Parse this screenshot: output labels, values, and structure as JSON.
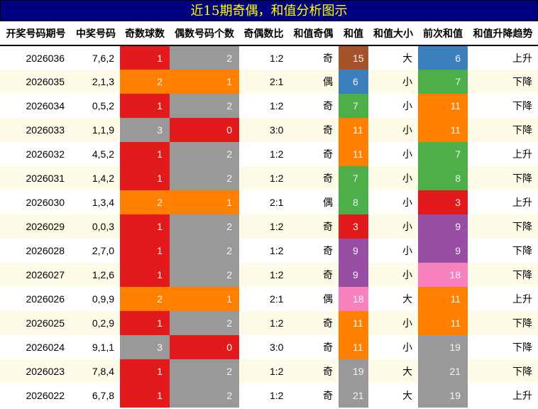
{
  "title": "近15期奇偶，和值分析图示",
  "columns": [
    "开奖号码期号",
    "中奖号码",
    "奇数球数",
    "偶数号码个数",
    "奇偶数比",
    "和值奇偶",
    "和值",
    "和值大小",
    "前次和值",
    "和值升降趋势"
  ],
  "colors": {
    "red": "#e31a1c",
    "gray": "#999999",
    "orange": "#ff7f00",
    "brown": "#a6522a",
    "blue": "#3b7fbd",
    "green": "#4daf4a",
    "purple": "#984ea3",
    "pink": "#f781bf",
    "header_bg": "#000080",
    "title_text": "#ffff00",
    "alt_row": "#fefbe8"
  },
  "rows": [
    {
      "issue": "2026036",
      "numbers": "7,6,2",
      "odd": "1",
      "even": "2",
      "ratio": "1:2",
      "sum_parity": "奇",
      "sum": "15",
      "size": "大",
      "prev_sum": "6",
      "trend": "上升",
      "odd_color": "#e31a1c",
      "even_color": "#999999",
      "sum_color": "#a6522a",
      "prev_color": "#3b7fbd"
    },
    {
      "issue": "2026035",
      "numbers": "2,1,3",
      "odd": "2",
      "even": "1",
      "ratio": "2:1",
      "sum_parity": "偶",
      "sum": "6",
      "size": "小",
      "prev_sum": "7",
      "trend": "下降",
      "odd_color": "#ff7f00",
      "even_color": "#ff7f00",
      "sum_color": "#3b7fbd",
      "prev_color": "#4daf4a"
    },
    {
      "issue": "2026034",
      "numbers": "0,5,2",
      "odd": "1",
      "even": "2",
      "ratio": "1:2",
      "sum_parity": "奇",
      "sum": "7",
      "size": "小",
      "prev_sum": "11",
      "trend": "下降",
      "odd_color": "#e31a1c",
      "even_color": "#999999",
      "sum_color": "#4daf4a",
      "prev_color": "#ff7f00"
    },
    {
      "issue": "2026033",
      "numbers": "1,1,9",
      "odd": "3",
      "even": "0",
      "ratio": "3:0",
      "sum_parity": "奇",
      "sum": "11",
      "size": "小",
      "prev_sum": "11",
      "trend": "下降",
      "odd_color": "#999999",
      "even_color": "#e31a1c",
      "sum_color": "#ff7f00",
      "prev_color": "#ff7f00"
    },
    {
      "issue": "2026032",
      "numbers": "4,5,2",
      "odd": "1",
      "even": "2",
      "ratio": "1:2",
      "sum_parity": "奇",
      "sum": "11",
      "size": "小",
      "prev_sum": "7",
      "trend": "上升",
      "odd_color": "#e31a1c",
      "even_color": "#999999",
      "sum_color": "#ff7f00",
      "prev_color": "#4daf4a"
    },
    {
      "issue": "2026031",
      "numbers": "1,4,2",
      "odd": "1",
      "even": "2",
      "ratio": "1:2",
      "sum_parity": "奇",
      "sum": "7",
      "size": "小",
      "prev_sum": "8",
      "trend": "下降",
      "odd_color": "#e31a1c",
      "even_color": "#999999",
      "sum_color": "#4daf4a",
      "prev_color": "#4daf4a"
    },
    {
      "issue": "2026030",
      "numbers": "1,3,4",
      "odd": "2",
      "even": "1",
      "ratio": "2:1",
      "sum_parity": "偶",
      "sum": "8",
      "size": "小",
      "prev_sum": "3",
      "trend": "上升",
      "odd_color": "#ff7f00",
      "even_color": "#ff7f00",
      "sum_color": "#4daf4a",
      "prev_color": "#e31a1c"
    },
    {
      "issue": "2026029",
      "numbers": "0,0,3",
      "odd": "1",
      "even": "2",
      "ratio": "1:2",
      "sum_parity": "奇",
      "sum": "3",
      "size": "小",
      "prev_sum": "9",
      "trend": "下降",
      "odd_color": "#e31a1c",
      "even_color": "#999999",
      "sum_color": "#e31a1c",
      "prev_color": "#984ea3"
    },
    {
      "issue": "2026028",
      "numbers": "2,7,0",
      "odd": "1",
      "even": "2",
      "ratio": "1:2",
      "sum_parity": "奇",
      "sum": "9",
      "size": "小",
      "prev_sum": "9",
      "trend": "下降",
      "odd_color": "#e31a1c",
      "even_color": "#999999",
      "sum_color": "#984ea3",
      "prev_color": "#984ea3"
    },
    {
      "issue": "2026027",
      "numbers": "1,2,6",
      "odd": "1",
      "even": "2",
      "ratio": "1:2",
      "sum_parity": "奇",
      "sum": "9",
      "size": "小",
      "prev_sum": "18",
      "trend": "下降",
      "odd_color": "#e31a1c",
      "even_color": "#999999",
      "sum_color": "#984ea3",
      "prev_color": "#f781bf"
    },
    {
      "issue": "2026026",
      "numbers": "0,9,9",
      "odd": "2",
      "even": "1",
      "ratio": "2:1",
      "sum_parity": "偶",
      "sum": "18",
      "size": "大",
      "prev_sum": "11",
      "trend": "上升",
      "odd_color": "#ff7f00",
      "even_color": "#ff7f00",
      "sum_color": "#f781bf",
      "prev_color": "#ff7f00"
    },
    {
      "issue": "2026025",
      "numbers": "0,2,9",
      "odd": "1",
      "even": "2",
      "ratio": "1:2",
      "sum_parity": "奇",
      "sum": "11",
      "size": "小",
      "prev_sum": "11",
      "trend": "下降",
      "odd_color": "#e31a1c",
      "even_color": "#999999",
      "sum_color": "#ff7f00",
      "prev_color": "#ff7f00"
    },
    {
      "issue": "2026024",
      "numbers": "9,1,1",
      "odd": "3",
      "even": "0",
      "ratio": "3:0",
      "sum_parity": "奇",
      "sum": "11",
      "size": "小",
      "prev_sum": "19",
      "trend": "下降",
      "odd_color": "#999999",
      "even_color": "#e31a1c",
      "sum_color": "#ff7f00",
      "prev_color": "#999999"
    },
    {
      "issue": "2026023",
      "numbers": "7,8,4",
      "odd": "1",
      "even": "2",
      "ratio": "1:2",
      "sum_parity": "奇",
      "sum": "19",
      "size": "大",
      "prev_sum": "21",
      "trend": "下降",
      "odd_color": "#e31a1c",
      "even_color": "#999999",
      "sum_color": "#999999",
      "prev_color": "#999999"
    },
    {
      "issue": "2026022",
      "numbers": "6,7,8",
      "odd": "1",
      "even": "2",
      "ratio": "1:2",
      "sum_parity": "奇",
      "sum": "21",
      "size": "大",
      "prev_sum": "19",
      "trend": "上升",
      "odd_color": "#e31a1c",
      "even_color": "#999999",
      "sum_color": "#999999",
      "prev_color": "#999999"
    }
  ]
}
